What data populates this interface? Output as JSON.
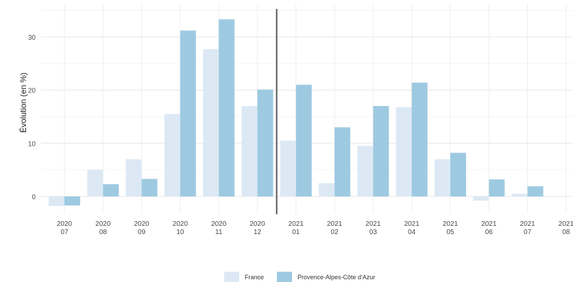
{
  "chart_data": {
    "type": "bar",
    "title": "",
    "xlabel": "",
    "ylabel": "Évolution (en %)",
    "ylim": [
      -3,
      35
    ],
    "yticks": [
      0,
      10,
      20,
      30
    ],
    "grid": true,
    "legend_position": "bottom",
    "categories": [
      [
        "2020",
        "07"
      ],
      [
        "2020",
        "08"
      ],
      [
        "2020",
        "09"
      ],
      [
        "2020",
        "10"
      ],
      [
        "2020",
        "11"
      ],
      [
        "2020",
        "12"
      ],
      [
        "2021",
        "01"
      ],
      [
        "2021",
        "02"
      ],
      [
        "2021",
        "03"
      ],
      [
        "2021",
        "04"
      ],
      [
        "2021",
        "05"
      ],
      [
        "2021",
        "06"
      ],
      [
        "2021",
        "07"
      ],
      [
        "2021",
        "08"
      ]
    ],
    "series": [
      {
        "name": "France",
        "color": "#dce9f5",
        "values": [
          -1.8,
          5.0,
          7.0,
          15.5,
          27.7,
          17.0,
          10.5,
          2.5,
          9.5,
          16.8,
          7.0,
          -0.8,
          0.5,
          0.0
        ]
      },
      {
        "name": "Provence-Alpes-Côte d'Azur",
        "color": "#9ecae1",
        "values": [
          -1.7,
          2.3,
          3.3,
          31.2,
          33.3,
          20.1,
          21.0,
          13.0,
          17.0,
          21.4,
          8.2,
          3.2,
          1.9,
          0.0
        ]
      }
    ],
    "vertical_line_between": [
      "12",
      "01"
    ]
  }
}
